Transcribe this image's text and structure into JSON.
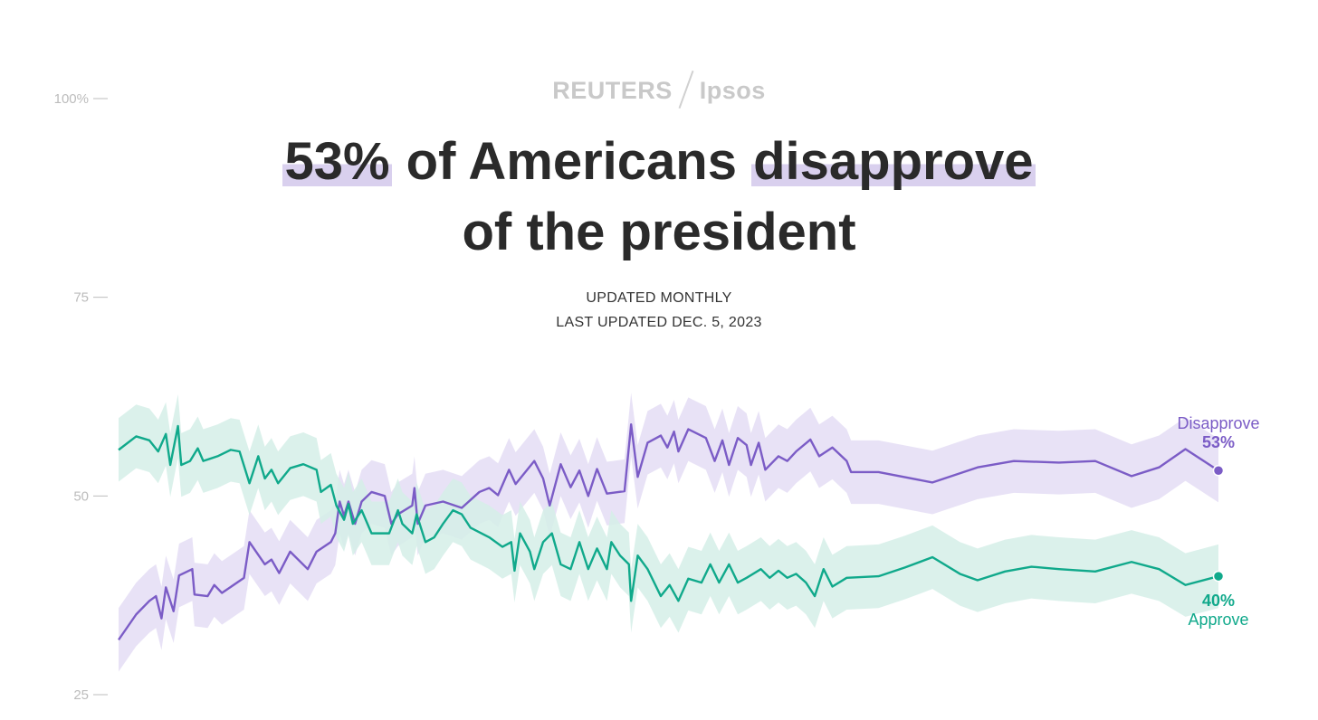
{
  "brand": {
    "left": "REUTERS",
    "right": "Ipsos"
  },
  "title": {
    "highlight1": "53%",
    "middle": " of Americans ",
    "highlight2": "disapprove",
    "line2": "of the president"
  },
  "subtitle": {
    "line1": "UPDATED MONTHLY",
    "line2": "LAST UPDATED DEC. 5, 2023"
  },
  "colors": {
    "approve": "#10a98b",
    "approve_band": "#d5efe8",
    "disapprove": "#7b5cc6",
    "disapprove_band": "#e4ddf4",
    "axis": "#bcbcbc"
  },
  "chart_data": {
    "type": "line",
    "title": "53% of Americans disapprove of the president",
    "xlabel": "",
    "ylabel": "",
    "x_note": "time index 0-100 (earliest to Dec. 5, 2023)",
    "ylim": [
      25,
      100
    ],
    "yticks": [
      100,
      75,
      50,
      25
    ],
    "ytick_labels": [
      "100%",
      "75",
      "50",
      "25"
    ],
    "band_halfwidth": 4,
    "series": [
      {
        "name": "Disapprove",
        "final_label": "53%",
        "points": [
          [
            0,
            31.9
          ],
          [
            1.6,
            35.1
          ],
          [
            2.8,
            36.8
          ],
          [
            3.4,
            37.4
          ],
          [
            3.9,
            34.6
          ],
          [
            4.3,
            38.5
          ],
          [
            5,
            35.5
          ],
          [
            5.5,
            40
          ],
          [
            6.7,
            40.8
          ],
          [
            6.9,
            37.6
          ],
          [
            8.1,
            37.4
          ],
          [
            8.7,
            38.8
          ],
          [
            9.4,
            37.8
          ],
          [
            11.4,
            39.7
          ],
          [
            11.9,
            44.2
          ],
          [
            13.3,
            41.4
          ],
          [
            13.9,
            42
          ],
          [
            14.6,
            40.3
          ],
          [
            15.6,
            43
          ],
          [
            17.2,
            40.8
          ],
          [
            18,
            43
          ],
          [
            19.3,
            44.2
          ],
          [
            19.7,
            45.3
          ],
          [
            20.1,
            49.3
          ],
          [
            20.5,
            47.5
          ],
          [
            20.9,
            49.3
          ],
          [
            21.5,
            46.5
          ],
          [
            22.1,
            49.3
          ],
          [
            23,
            50.5
          ],
          [
            24.2,
            50
          ],
          [
            24.8,
            46.5
          ],
          [
            25.4,
            47.7
          ],
          [
            26.7,
            48.8
          ],
          [
            26.9,
            51
          ],
          [
            27.2,
            46.5
          ],
          [
            27.9,
            48.8
          ],
          [
            29.5,
            49.3
          ],
          [
            31.2,
            48.5
          ],
          [
            32.8,
            50.5
          ],
          [
            33.7,
            51
          ],
          [
            34.5,
            50.1
          ],
          [
            35.5,
            53.3
          ],
          [
            36.1,
            51.5
          ],
          [
            37.8,
            54.4
          ],
          [
            38.6,
            52.2
          ],
          [
            39.2,
            48.8
          ],
          [
            40.2,
            54
          ],
          [
            41.1,
            51.1
          ],
          [
            41.9,
            53.2
          ],
          [
            42.7,
            50
          ],
          [
            43.5,
            53.4
          ],
          [
            44.4,
            50.3
          ],
          [
            46,
            50.6
          ],
          [
            46.6,
            59
          ],
          [
            47.2,
            52.4
          ],
          [
            48.1,
            56.7
          ],
          [
            49.3,
            57.6
          ],
          [
            49.9,
            56.1
          ],
          [
            50.5,
            58.1
          ],
          [
            50.9,
            55.6
          ],
          [
            51.8,
            58.4
          ],
          [
            53.4,
            57.3
          ],
          [
            54.2,
            54.4
          ],
          [
            54.9,
            57
          ],
          [
            55.5,
            53.9
          ],
          [
            56.3,
            57.3
          ],
          [
            57.1,
            56.4
          ],
          [
            57.5,
            53.9
          ],
          [
            58.2,
            56.7
          ],
          [
            58.8,
            53.3
          ],
          [
            60,
            55
          ],
          [
            60.8,
            54.4
          ],
          [
            61.6,
            55.6
          ],
          [
            62.9,
            57.1
          ],
          [
            63.7,
            55
          ],
          [
            64.9,
            56.1
          ],
          [
            66.2,
            54.4
          ],
          [
            66.6,
            53
          ],
          [
            69.1,
            53
          ],
          [
            74,
            51.7
          ],
          [
            78.1,
            53.6
          ],
          [
            81.4,
            54.4
          ],
          [
            85.5,
            54.2
          ],
          [
            88.8,
            54.4
          ],
          [
            92.1,
            52.5
          ],
          [
            94.6,
            53.6
          ],
          [
            97,
            55.9
          ],
          [
            100,
            53.2
          ]
        ]
      },
      {
        "name": "Approve",
        "final_label": "40%",
        "points": [
          [
            0,
            55.8
          ],
          [
            1.6,
            57.5
          ],
          [
            2.8,
            57
          ],
          [
            3.6,
            55.6
          ],
          [
            4.3,
            57.8
          ],
          [
            4.7,
            53.9
          ],
          [
            5.4,
            58.8
          ],
          [
            5.7,
            53.9
          ],
          [
            6.5,
            54.4
          ],
          [
            7.2,
            56
          ],
          [
            7.7,
            54.4
          ],
          [
            9,
            55
          ],
          [
            10.2,
            55.8
          ],
          [
            11,
            55.6
          ],
          [
            11.9,
            51.6
          ],
          [
            12.7,
            55
          ],
          [
            13.3,
            52.2
          ],
          [
            13.9,
            53.3
          ],
          [
            14.5,
            51.6
          ],
          [
            15.6,
            53.5
          ],
          [
            16.8,
            54
          ],
          [
            18,
            53.3
          ],
          [
            18.4,
            50.5
          ],
          [
            19.3,
            51.4
          ],
          [
            19.8,
            48.8
          ],
          [
            20.5,
            47
          ],
          [
            20.9,
            49
          ],
          [
            21.3,
            46.5
          ],
          [
            22.1,
            48.2
          ],
          [
            23,
            45.3
          ],
          [
            24.6,
            45.3
          ],
          [
            25.4,
            48.2
          ],
          [
            25.8,
            46.5
          ],
          [
            26.7,
            45.3
          ],
          [
            27.1,
            47.7
          ],
          [
            27.9,
            44.2
          ],
          [
            28.7,
            44.8
          ],
          [
            29.5,
            46.5
          ],
          [
            30.4,
            48.2
          ],
          [
            31.2,
            47.7
          ],
          [
            32,
            46
          ],
          [
            33.7,
            44.8
          ],
          [
            34.9,
            43.6
          ],
          [
            35.7,
            44.2
          ],
          [
            36,
            40.6
          ],
          [
            36.5,
            45.3
          ],
          [
            37.4,
            43
          ],
          [
            37.8,
            40.8
          ],
          [
            38.6,
            44.2
          ],
          [
            39.4,
            45.3
          ],
          [
            40.2,
            41.4
          ],
          [
            41.1,
            40.8
          ],
          [
            41.9,
            44.2
          ],
          [
            42.7,
            40.8
          ],
          [
            43.5,
            43.4
          ],
          [
            44.4,
            40.8
          ],
          [
            44.8,
            44.2
          ],
          [
            45.6,
            42.5
          ],
          [
            46.4,
            41.4
          ],
          [
            46.6,
            36.8
          ],
          [
            47.2,
            42.5
          ],
          [
            48.1,
            40.8
          ],
          [
            49.3,
            37.4
          ],
          [
            50.1,
            38.8
          ],
          [
            50.9,
            36.8
          ],
          [
            51.8,
            39.6
          ],
          [
            53,
            39.1
          ],
          [
            53.8,
            41.4
          ],
          [
            54.6,
            39.1
          ],
          [
            55.5,
            41.4
          ],
          [
            56.3,
            39.1
          ],
          [
            57.1,
            39.7
          ],
          [
            58.4,
            40.8
          ],
          [
            59.2,
            39.7
          ],
          [
            60,
            40.6
          ],
          [
            60.8,
            39.7
          ],
          [
            61.6,
            40.2
          ],
          [
            62.5,
            39.1
          ],
          [
            63.3,
            37.4
          ],
          [
            64.1,
            40.8
          ],
          [
            64.9,
            38.6
          ],
          [
            66.2,
            39.7
          ],
          [
            69.1,
            39.9
          ],
          [
            71.5,
            41
          ],
          [
            74,
            42.3
          ],
          [
            76.5,
            40.2
          ],
          [
            78.1,
            39.4
          ],
          [
            80.6,
            40.5
          ],
          [
            83,
            41.1
          ],
          [
            85.5,
            40.8
          ],
          [
            88.8,
            40.5
          ],
          [
            92.1,
            41.7
          ],
          [
            94.6,
            40.8
          ],
          [
            97,
            38.8
          ],
          [
            100,
            39.9
          ]
        ]
      }
    ]
  }
}
